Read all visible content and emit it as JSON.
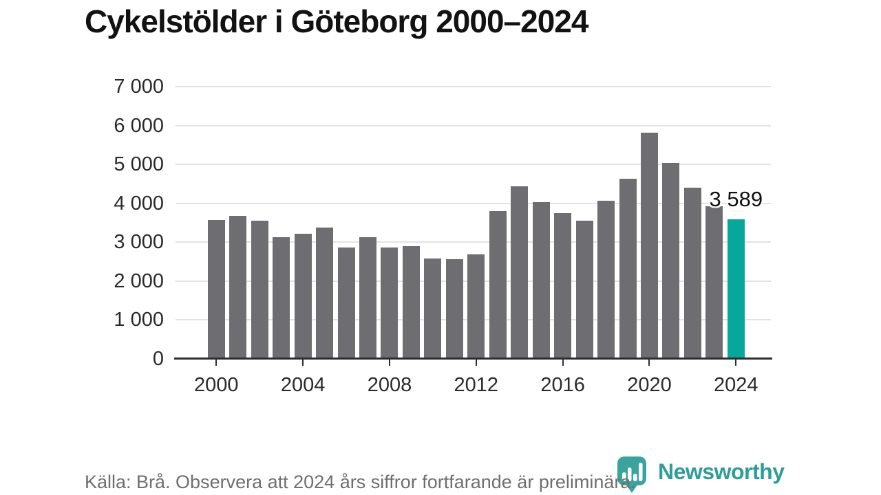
{
  "chart_data": {
    "type": "bar",
    "title": "Cykelstölder i Göteborg 2000–2024",
    "categories": [
      2000,
      2001,
      2002,
      2003,
      2004,
      2005,
      2006,
      2007,
      2008,
      2009,
      2010,
      2011,
      2012,
      2013,
      2014,
      2015,
      2016,
      2017,
      2018,
      2019,
      2020,
      2021,
      2022,
      2023,
      2024
    ],
    "values": [
      3570,
      3680,
      3550,
      3130,
      3210,
      3380,
      2870,
      3130,
      2860,
      2900,
      2580,
      2560,
      2690,
      3800,
      4440,
      4030,
      3740,
      3550,
      4070,
      4640,
      5810,
      5040,
      4400,
      3920,
      3589
    ],
    "ylim": [
      0,
      7000
    ],
    "ytick_interval": 1000,
    "ytick_labels": [
      "0",
      "1 000",
      "2 000",
      "3 000",
      "4 000",
      "5 000",
      "6 000",
      "7 000"
    ],
    "xtick_labels": [
      "2000",
      "2004",
      "2008",
      "2012",
      "2016",
      "2020",
      "2024"
    ],
    "grid": true,
    "legend_position": "none",
    "highlight_category": 2024,
    "annotation": {
      "category": 2024,
      "value": 3589,
      "label": "3 589"
    },
    "colors": {
      "bar": "#6e6d72",
      "highlight": "#07a79c",
      "grid": "#e3e3e3",
      "axis": "#2e2e2e",
      "tick_label": "#2b2b2b"
    }
  },
  "footer": {
    "source_note": "Källa: Brå. Observera att 2024 års siffror fortfarande är preliminära.",
    "brand": "Newsworthy",
    "brand_color": "#2d9e97",
    "logo_icon": "speech-bubble-bar-chart-icon",
    "logo_icon_color": "#3aa39b"
  }
}
